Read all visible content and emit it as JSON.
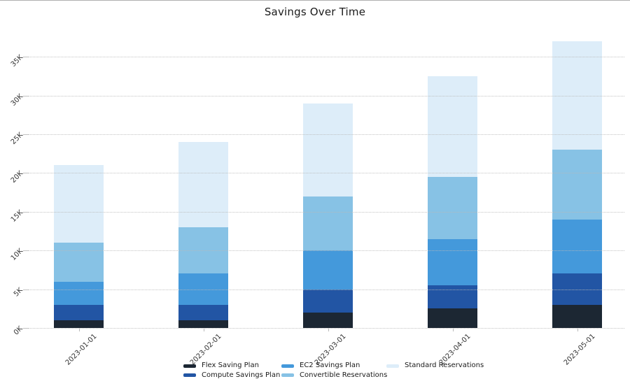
{
  "chart_data": {
    "type": "bar",
    "stacked": true,
    "title": "Savings Over Time",
    "categories": [
      "2023-01-01",
      "2023-02-01",
      "2023-03-01",
      "2023-04-01",
      "2023-05-01"
    ],
    "series": [
      {
        "name": "Flex Saving Plan",
        "color": "#1c2733",
        "values_k": [
          1,
          1,
          2,
          2.5,
          3
        ]
      },
      {
        "name": "Compute Savings Plan",
        "color": "#2255a4",
        "values_k": [
          2,
          2,
          3,
          3,
          4
        ]
      },
      {
        "name": "EC2 Savings Plan",
        "color": "#4499db",
        "values_k": [
          3,
          4,
          5,
          6,
          7
        ]
      },
      {
        "name": "Convertible Reservations",
        "color": "#87c2e5",
        "values_k": [
          5,
          6,
          7,
          8,
          9
        ]
      },
      {
        "name": "Standard Reservations",
        "color": "#ddedf9",
        "values_k": [
          10,
          11,
          12,
          13,
          14
        ]
      }
    ],
    "stack_totals_k": [
      21,
      24,
      29,
      32.5,
      37
    ],
    "y_ticks": [
      {
        "value_k": 0,
        "label": "0K"
      },
      {
        "value_k": 5,
        "label": "5K"
      },
      {
        "value_k": 10,
        "label": "10K"
      },
      {
        "value_k": 15,
        "label": "15K"
      },
      {
        "value_k": 20,
        "label": "20K"
      },
      {
        "value_k": 25,
        "label": "25K"
      },
      {
        "value_k": 30,
        "label": "30K"
      },
      {
        "value_k": 35,
        "label": "35K"
      }
    ],
    "ylim_k": [
      0,
      38.5
    ],
    "xlabel": "",
    "ylabel": "",
    "grid": "horizontal-dotted",
    "legend_position": "bottom",
    "legend_rows": 2
  }
}
